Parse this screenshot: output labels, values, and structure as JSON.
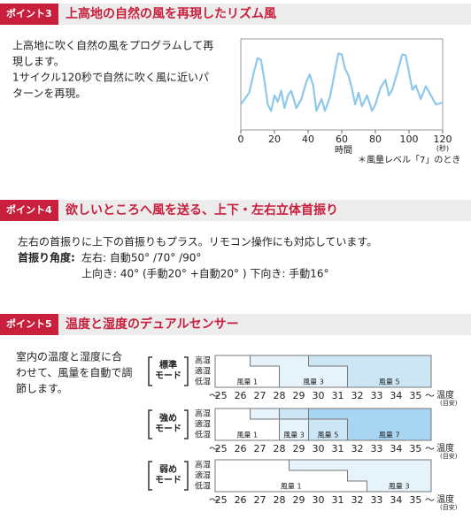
{
  "point3": {
    "badge": "ポイント3",
    "title": "上高地の自然の風を再現したリズム風",
    "text": [
      "上高地に吹く自然の風をプログラムして再",
      "現します。",
      "1サイクル120秒で自然に吹く風に近いパ",
      "ターンを再現。"
    ]
  },
  "chart_data": {
    "type": "line",
    "x": [
      0,
      5,
      8,
      10,
      12,
      14,
      16,
      18,
      20,
      22,
      24,
      26,
      28,
      30,
      33,
      36,
      39,
      41,
      43,
      45,
      48,
      50,
      53,
      56,
      58,
      60,
      62,
      64,
      66,
      68,
      70,
      72,
      75,
      78,
      80,
      83,
      86,
      88,
      90,
      93,
      96,
      98,
      100,
      102,
      104,
      107,
      110,
      113,
      116,
      120
    ],
    "series": [
      {
        "color": "#8ec8ec",
        "values": [
          2.8,
          4.1,
          6.5,
          7.9,
          7.7,
          5.5,
          2.8,
          2.1,
          3.8,
          3.1,
          4.3,
          2.4,
          3.8,
          4.3,
          2.4,
          3.4,
          5.3,
          6.1,
          4.9,
          2.1,
          3.4,
          2.1,
          3.6,
          6.5,
          8.4,
          8.3,
          6.7,
          6.0,
          4.6,
          2.8,
          4.1,
          2.6,
          3.8,
          2.1,
          2.8,
          4.6,
          5.5,
          3.8,
          4.4,
          6.3,
          8.3,
          8.2,
          6.3,
          4.4,
          4.9,
          3.4,
          4.8,
          3.8,
          2.8,
          3.0
        ]
      }
    ],
    "xlim": [
      0,
      120
    ],
    "xticks": [
      0,
      20,
      40,
      60,
      80,
      100,
      120
    ],
    "ylim": [
      0,
      10
    ],
    "x_unit": "(秒)",
    "xlabel": "時間",
    "note": "＊風量レベル「7」のとき"
  },
  "point4": {
    "badge": "ポイント4",
    "title": "欲しいところへ風を送る、上下・左右立体首振り",
    "text": "左右の首振りに上下の首振りもプラス。リモコン操作にも対応しています。",
    "angle_label": "首振り角度:",
    "angle_lines": [
      "左右: 自動50° /70° /90°",
      "上向き: 40° (手動20° +自動20° ) 下向き: 手動16°"
    ]
  },
  "point5": {
    "badge": "ポイント5",
    "title": "温度と湿度のデュアルセンサー",
    "text": [
      "室内の温度と湿度に合",
      "わせて、風量を自動で調",
      "節します。"
    ],
    "diagram": {
      "rows": [
        "高湿",
        "適湿",
        "低湿"
      ],
      "ticks": [
        25,
        26,
        27,
        28,
        29,
        30,
        31,
        32,
        33,
        34,
        35
      ],
      "xlim": [
        24.7,
        35.8
      ],
      "range_start": "〜",
      "range_end": "〜",
      "axis_label": "温度",
      "axis_note": "(目安)",
      "modes": [
        {
          "label": [
            "標準",
            "モード"
          ],
          "zones": [
            {
              "label": "風量 1",
              "color": "#ffffff"
            },
            {
              "label": "風量 3",
              "start": [
                26.5,
                28,
                28
              ],
              "color": "#e6f3fb"
            },
            {
              "label": "風量 5",
              "start": [
                29.5,
                31.5,
                31.5
              ],
              "color": "#cce6f6"
            }
          ]
        },
        {
          "label": [
            "強め",
            "モード"
          ],
          "zones": [
            {
              "label": "風量 1",
              "color": "#ffffff"
            },
            {
              "label": "風量 3",
              "start": [
                26.5,
                28,
                28
              ],
              "color": "#e6f3fb"
            },
            {
              "label": "風量 5",
              "start": [
                28,
                29.5,
                29.5
              ],
              "color": "#cce6f6"
            },
            {
              "label": "風量 7",
              "start": [
                29.5,
                31.5,
                31.5
              ],
              "color": "#a8d5f1"
            }
          ]
        },
        {
          "label": [
            "弱め",
            "モード"
          ],
          "zones": [
            {
              "label": "風量 1",
              "color": "#ffffff"
            },
            {
              "label": "風量 3",
              "start": [
                28.5,
                31.5,
                32.5
              ],
              "color": "#e6f3fb"
            }
          ]
        }
      ]
    }
  }
}
